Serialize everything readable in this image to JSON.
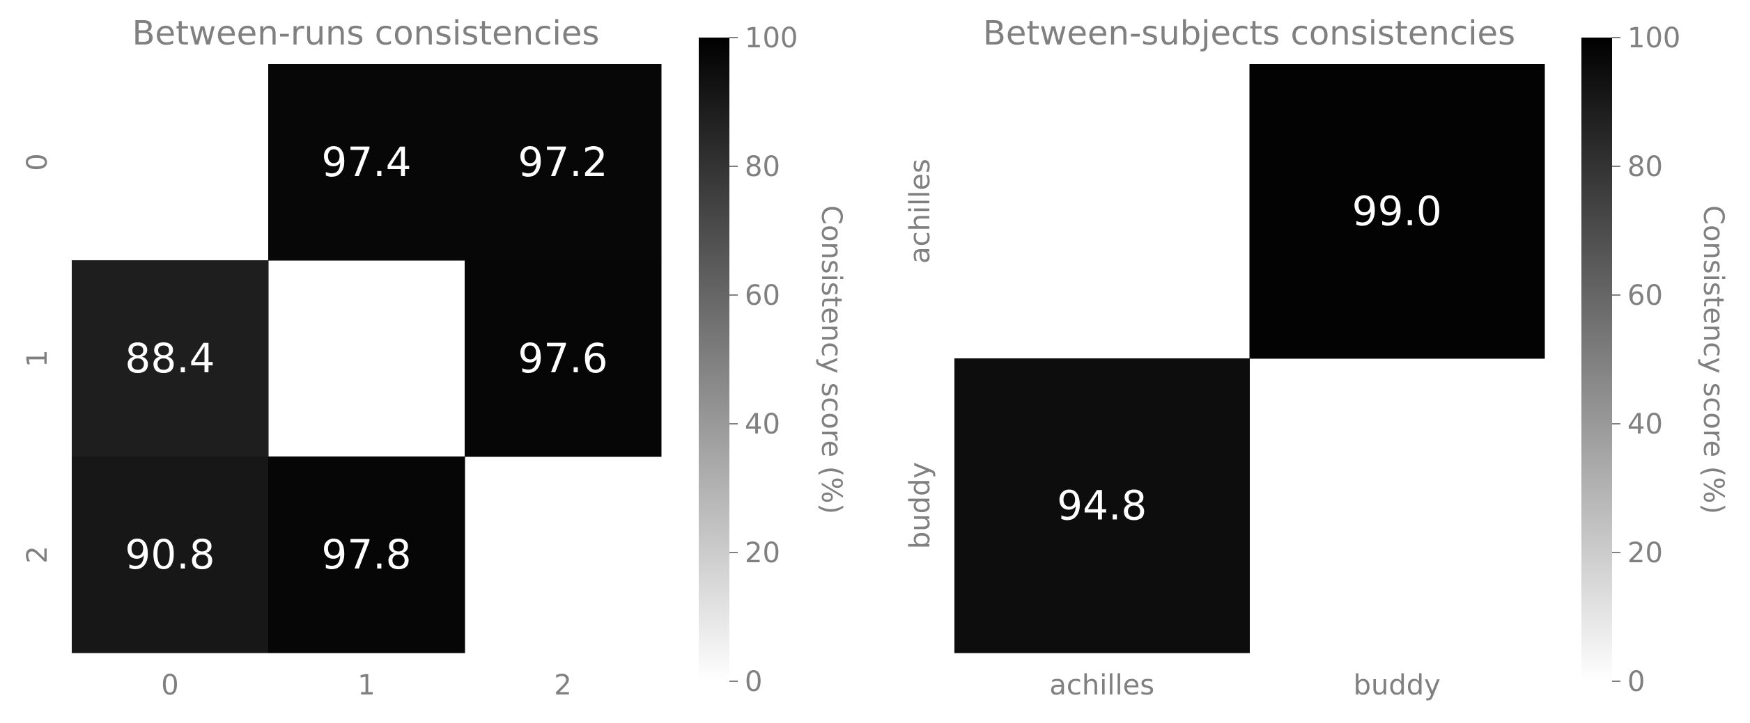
{
  "colors": {
    "text": "#808080",
    "cell_text": "#ffffff",
    "cmap_low": "#ffffff",
    "cmap_high": "#000000"
  },
  "chart_data": [
    {
      "type": "heatmap",
      "title": "Between-runs consistencies",
      "x_categories": [
        "0",
        "1",
        "2"
      ],
      "y_categories": [
        "0",
        "1",
        "2"
      ],
      "matrix": [
        [
          null,
          97.4,
          97.2
        ],
        [
          88.4,
          null,
          97.6
        ],
        [
          90.8,
          97.8,
          null
        ]
      ],
      "value_format": "one-decimal",
      "colorbar": {
        "label": "Consistency score (%)",
        "range": [
          0,
          100
        ],
        "ticks": [
          "0",
          "20",
          "40",
          "60",
          "80",
          "100"
        ]
      }
    },
    {
      "type": "heatmap",
      "title": "Between-subjects consistencies",
      "x_categories": [
        "achilles",
        "buddy"
      ],
      "y_categories": [
        "achilles",
        "buddy"
      ],
      "matrix": [
        [
          null,
          99.0
        ],
        [
          94.8,
          null
        ]
      ],
      "value_format": "one-decimal",
      "colorbar": {
        "label": "Consistency score (%)",
        "range": [
          0,
          100
        ],
        "ticks": [
          "0",
          "20",
          "40",
          "60",
          "80",
          "100"
        ]
      }
    }
  ]
}
